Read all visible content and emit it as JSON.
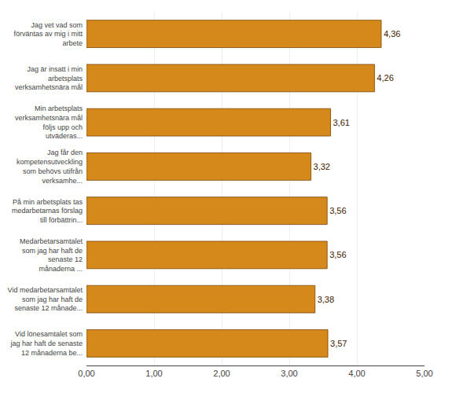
{
  "chart_data": {
    "type": "bar",
    "orientation": "horizontal",
    "categories": [
      "Jag vet vad som\nförväntas av mig i mitt\narbete",
      "Jag är insatt i min\narbetsplats\nverksamhetsnära mål",
      "Min arbetsplats\nverksamhetsnära mål\nföljs upp och\nutväderas...",
      "Jag får den\nkompetensutveckling\nsom behövs utifrån\nverksamhe...",
      "På min arbetsplats tas\nmedarbetarnas förslag\ntill förbättrin...",
      "Medarbetarsamtalet\nsom jag har haft de\nsenaste 12\nmånaderna ...",
      "Vid medarbetarsamtalet\nsom jag har haft de\nsenaste 12 månade...",
      "Vid lönesamtalet som\njag har haft de senaste\n12 månaderna be..."
    ],
    "values": [
      4.36,
      4.26,
      3.61,
      3.32,
      3.56,
      3.56,
      3.38,
      3.57
    ],
    "value_labels": [
      "4,36",
      "4,26",
      "3,61",
      "3,32",
      "3,56",
      "3,56",
      "3,38",
      "3,57"
    ],
    "data_labels": true,
    "color": "#d4891a",
    "xlim": [
      0,
      5.0
    ],
    "xticks": [
      {
        "value": 0.0,
        "label": "0,00"
      },
      {
        "value": 1.0,
        "label": "1,00"
      },
      {
        "value": 2.0,
        "label": "2,00"
      },
      {
        "value": 3.0,
        "label": "3,00"
      },
      {
        "value": 4.0,
        "label": "4,00"
      },
      {
        "value": 5.0,
        "label": "5,00"
      }
    ],
    "grid": true
  }
}
